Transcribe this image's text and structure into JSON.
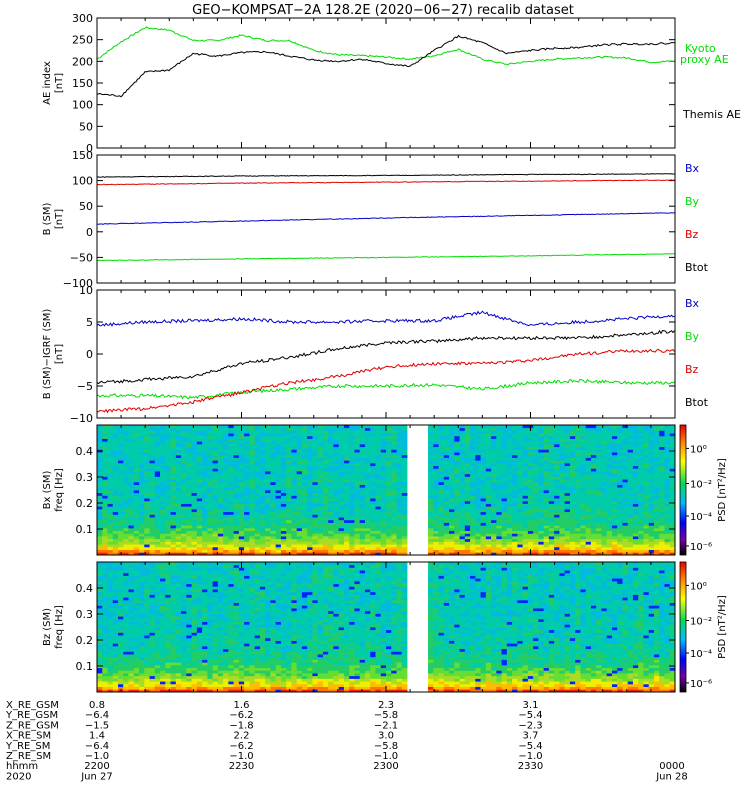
{
  "title": "GEO−KOMPSAT−2A 128.2E (2020−06−27) recalib dataset",
  "chart_data": [
    {
      "id": "ae",
      "type": "line",
      "ylabel": [
        "AE index",
        "[nT]"
      ],
      "ylim": [
        0,
        300
      ],
      "yticks": [
        0,
        50,
        100,
        150,
        200,
        250,
        300
      ],
      "x_hhmm": [
        2200,
        2205,
        2210,
        2215,
        2220,
        2225,
        2230,
        2235,
        2240,
        2245,
        2250,
        2255,
        2300,
        2305,
        2310,
        2315,
        2320,
        2325,
        2330,
        2335,
        2340,
        2345,
        2350,
        2355,
        2359
      ],
      "series": [
        {
          "name": "Kyoto proxy AE",
          "color": "#00dd00",
          "values": [
            205,
            245,
            278,
            272,
            248,
            248,
            260,
            248,
            248,
            225,
            215,
            213,
            210,
            205,
            213,
            228,
            205,
            193,
            200,
            205,
            208,
            210,
            208,
            198,
            200
          ]
        },
        {
          "name": "Themis AE",
          "color": "#000000",
          "values": [
            125,
            120,
            175,
            180,
            218,
            212,
            220,
            222,
            212,
            203,
            200,
            205,
            195,
            188,
            225,
            258,
            243,
            218,
            225,
            230,
            232,
            238,
            240,
            240,
            242
          ]
        }
      ]
    },
    {
      "id": "b",
      "type": "line",
      "ylabel": [
        "B (SM)",
        "[nT]"
      ],
      "ylim": [
        -100,
        150
      ],
      "yticks": [
        -100,
        -50,
        0,
        50,
        100,
        150
      ],
      "x_hhmm": [
        2200,
        2230,
        2300,
        2330,
        2359
      ],
      "series": [
        {
          "name": "Bx",
          "color": "#0000cc",
          "values": [
            15,
            21,
            27,
            32,
            37
          ]
        },
        {
          "name": "By",
          "color": "#00dd00",
          "values": [
            -56,
            -53,
            -50,
            -47,
            -43
          ]
        },
        {
          "name": "Bz",
          "color": "#dd0000",
          "values": [
            92,
            95,
            97,
            99,
            101
          ]
        },
        {
          "name": "Btot",
          "color": "#000000",
          "values": [
            107,
            109,
            110,
            112,
            113
          ]
        }
      ]
    },
    {
      "id": "db",
      "type": "line",
      "ylabel": [
        "B (SM)−IGRF (SM)",
        "[nT]"
      ],
      "ylim": [
        -10,
        10
      ],
      "yticks": [
        -10,
        -5,
        0,
        5,
        10
      ],
      "x_hhmm": [
        2200,
        2210,
        2220,
        2230,
        2240,
        2250,
        2300,
        2310,
        2320,
        2330,
        2340,
        2350,
        2359
      ],
      "series": [
        {
          "name": "Bx",
          "color": "#0000cc",
          "values": [
            4.5,
            5.0,
            5.2,
            5.5,
            5.0,
            5.0,
            5.2,
            5.2,
            6.5,
            4.5,
            5.0,
            5.5,
            6.0
          ]
        },
        {
          "name": "By",
          "color": "#00dd00",
          "values": [
            -6.5,
            -6.5,
            -6.8,
            -6.0,
            -5.5,
            -5.0,
            -5.0,
            -4.8,
            -5.5,
            -4.5,
            -4.2,
            -4.5,
            -4.5
          ]
        },
        {
          "name": "Bz",
          "color": "#dd0000",
          "values": [
            -9.0,
            -8.5,
            -7.5,
            -6.0,
            -4.5,
            -3.5,
            -2.0,
            -1.5,
            -1.5,
            -1.0,
            0.0,
            0.5,
            0.5
          ]
        },
        {
          "name": "Btot",
          "color": "#000000",
          "values": [
            -4.5,
            -4.0,
            -3.5,
            -1.5,
            -0.5,
            0.8,
            1.8,
            2.0,
            2.5,
            2.5,
            2.5,
            3.0,
            3.5
          ]
        }
      ]
    },
    {
      "id": "bx_psd",
      "type": "heatmap",
      "ylabel": [
        "Bx (SM)",
        "freq [Hz]"
      ],
      "ylim": [
        0,
        0.5
      ],
      "yticks": [
        "0.1",
        "0.2",
        "0.3",
        "0.4"
      ],
      "data_gap_hhmm": [
        2305,
        2308
      ],
      "colorbar": {
        "label": "PSD [nT²/Hz]",
        "ticks": [
          "10⁰",
          "10⁻²",
          "10⁻⁴",
          "10⁻⁶"
        ]
      }
    },
    {
      "id": "bz_psd",
      "type": "heatmap",
      "ylabel": [
        "Bz (SM)",
        "freq [Hz]"
      ],
      "ylim": [
        0,
        0.5
      ],
      "yticks": [
        "0.1",
        "0.2",
        "0.3",
        "0.4"
      ],
      "data_gap_hhmm": [
        2305,
        2308
      ],
      "colorbar": {
        "label": "PSD [nT²/Hz]",
        "ticks": [
          "10⁰",
          "10⁻²",
          "10⁻⁴",
          "10⁻⁶"
        ]
      }
    }
  ],
  "ephemeris": {
    "row_labels": [
      "X_RE_GSM",
      "Y_RE_GSM",
      "Z_RE_GSM",
      "X_RE_SM",
      "Y_RE_SM",
      "Z_RE_SM",
      "hhmm",
      "2020"
    ],
    "columns": [
      [
        "0.8",
        "−6.4",
        "−1.5",
        "1.4",
        "−6.4",
        "−1.0",
        "2200",
        "Jun 27"
      ],
      [
        "1.6",
        "−6.2",
        "−1.8",
        "2.2",
        "−6.2",
        "−1.0",
        "2230",
        ""
      ],
      [
        "2.3",
        "−5.8",
        "−2.1",
        "3.0",
        "−5.8",
        "−1.0",
        "2300",
        ""
      ],
      [
        "3.1",
        "−5.4",
        "−2.3",
        "3.7",
        "−5.4",
        "−1.0",
        "2330",
        ""
      ],
      [
        "",
        "",
        "",
        "",
        "",
        "",
        "0000",
        "Jun 28"
      ]
    ]
  }
}
